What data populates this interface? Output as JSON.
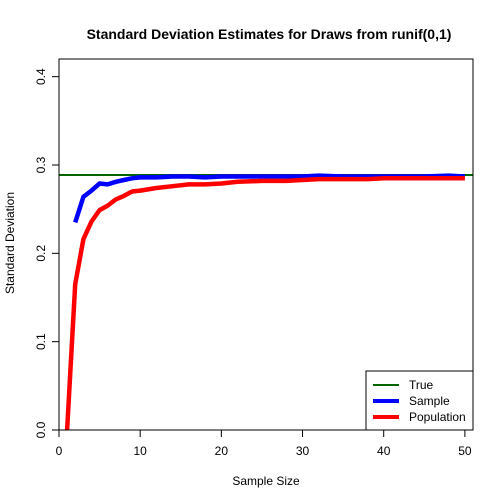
{
  "chart_data": {
    "type": "line",
    "title": "Standard Deviation Estimates for Draws from runif(0,1)",
    "xlabel": "Sample Size",
    "ylabel": "Standard Deviation",
    "xlim": [
      0,
      51
    ],
    "ylim": [
      0,
      0.42
    ],
    "xticks": [
      0,
      10,
      20,
      30,
      40,
      50
    ],
    "yticks": [
      0.0,
      0.1,
      0.2,
      0.3,
      0.4
    ],
    "xtick_labels": [
      "0",
      "10",
      "20",
      "30",
      "40",
      "50"
    ],
    "ytick_labels": [
      "0.0",
      "0.1",
      "0.2",
      "0.3",
      "0.4"
    ],
    "grid": false,
    "legend_position": "bottom-right",
    "reference_lines": [
      {
        "name": "True",
        "y": 0.2887,
        "color": "#006400"
      }
    ],
    "series": [
      {
        "name": "Sample",
        "color": "#0000ff",
        "x": [
          2,
          3,
          4,
          5,
          6,
          7,
          8,
          9,
          10,
          12,
          14,
          16,
          18,
          20,
          22,
          25,
          28,
          30,
          32,
          35,
          38,
          40,
          42,
          45,
          48,
          50
        ],
        "y": [
          0.235,
          0.264,
          0.271,
          0.279,
          0.278,
          0.281,
          0.283,
          0.285,
          0.286,
          0.286,
          0.287,
          0.287,
          0.286,
          0.287,
          0.287,
          0.287,
          0.287,
          0.287,
          0.288,
          0.287,
          0.287,
          0.287,
          0.287,
          0.287,
          0.288,
          0.287
        ]
      },
      {
        "name": "Population",
        "color": "#ff0000",
        "x": [
          1,
          2,
          3,
          4,
          5,
          6,
          7,
          8,
          9,
          10,
          12,
          14,
          16,
          18,
          20,
          22,
          25,
          28,
          30,
          32,
          35,
          38,
          40,
          42,
          45,
          48,
          50
        ],
        "y": [
          0.0,
          0.165,
          0.216,
          0.236,
          0.249,
          0.254,
          0.261,
          0.265,
          0.27,
          0.271,
          0.274,
          0.276,
          0.278,
          0.278,
          0.279,
          0.281,
          0.282,
          0.282,
          0.283,
          0.284,
          0.284,
          0.284,
          0.285,
          0.285,
          0.285,
          0.285,
          0.285
        ]
      }
    ]
  }
}
